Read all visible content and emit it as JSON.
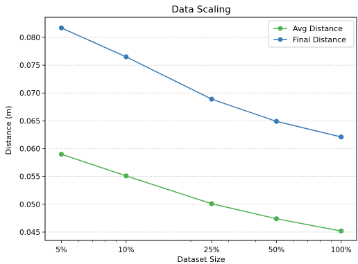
{
  "chart_data": {
    "type": "line",
    "title": "Data Scaling",
    "xlabel": "Dataset Size",
    "ylabel": "Distance (m)",
    "x_scale": "log",
    "categories": [
      "5%",
      "10%",
      "25%",
      "50%",
      "100%"
    ],
    "x": [
      5,
      10,
      25,
      50,
      100
    ],
    "xlim": [
      4.2,
      118
    ],
    "ylim": [
      0.0435,
      0.0836
    ],
    "yticks": [
      0.045,
      0.05,
      0.055,
      0.06,
      0.065,
      0.07,
      0.075,
      0.08
    ],
    "ytick_labels": [
      "0.045",
      "0.050",
      "0.055",
      "0.060",
      "0.065",
      "0.070",
      "0.075",
      "0.080"
    ],
    "grid": "y-dotted",
    "legend_position": "top-right",
    "series": [
      {
        "name": "Avg Distance",
        "color": "#4caf50",
        "values": [
          0.059,
          0.0551,
          0.0501,
          0.0474,
          0.0452
        ]
      },
      {
        "name": "Final Distance",
        "color": "#3a7ab8",
        "values": [
          0.0817,
          0.0765,
          0.0689,
          0.0649,
          0.0621
        ]
      }
    ]
  }
}
